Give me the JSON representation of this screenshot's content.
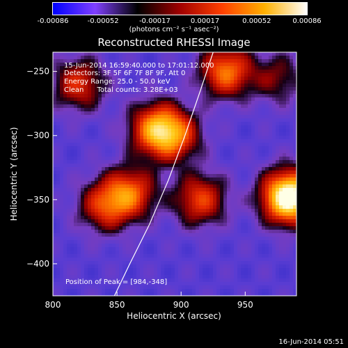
{
  "colorbar": {
    "ticks": [
      "-0.00086",
      "-0.00052",
      "-0.00017",
      "0.00017",
      "0.00052",
      "0.00086"
    ],
    "tick_values": [
      -0.00086,
      -0.00052,
      -0.00017,
      0.00017,
      0.00052,
      0.00086
    ],
    "min": -0.00086,
    "max": 0.00086,
    "label": "(photons cm⁻² s⁻¹ asec⁻²)",
    "colors": [
      "#0000ff",
      "#8040ff",
      "#000000",
      "#a00000",
      "#ff4000",
      "#ffb000",
      "#ffffff"
    ]
  },
  "title": "Reconstructed RHESSI Image",
  "info": {
    "line1": "15-Jun-2014 16:59:40.000 to 17:01:12.000",
    "line2": "Detectors: 3F 5F 6F 7F 8F 9F, Att 0",
    "line3": "Energy Range: 25.0 - 50.0 keV",
    "line4": "Clean      Total counts: 3.28E+03"
  },
  "peak_label": "Position of Peak = [984,-348]",
  "footer": "16-Jun-2014 05:51",
  "chart_data": {
    "type": "heatmap",
    "title": "Reconstructed RHESSI Image",
    "xlabel": "Heliocentric X (arcsec)",
    "ylabel": "Heliocentric Y (arcsec)",
    "xlim": [
      800,
      990
    ],
    "ylim": [
      -425,
      -235
    ],
    "xticks": [
      800,
      850,
      900,
      950
    ],
    "yticks": [
      -250,
      -300,
      -350,
      -400
    ],
    "peak": [
      984,
      -348
    ],
    "limb_curve": [
      [
        848,
        -425
      ],
      [
        860,
        -400
      ],
      [
        875,
        -370
      ],
      [
        890,
        -335
      ],
      [
        903,
        -300
      ],
      [
        915,
        -265
      ],
      [
        925,
        -235
      ]
    ],
    "sources": [
      {
        "x": 880,
        "y": -295,
        "level": 0.55
      },
      {
        "x": 895,
        "y": -300,
        "level": 0.45
      },
      {
        "x": 860,
        "y": -345,
        "level": 0.5
      },
      {
        "x": 840,
        "y": -355,
        "level": 0.4
      },
      {
        "x": 915,
        "y": -350,
        "level": 0.45
      },
      {
        "x": 935,
        "y": -250,
        "level": 0.55
      },
      {
        "x": 820,
        "y": -260,
        "level": 0.4
      },
      {
        "x": 984,
        "y": -348,
        "level": 1.0
      },
      {
        "x": 975,
        "y": -255,
        "level": 0.25
      }
    ]
  }
}
